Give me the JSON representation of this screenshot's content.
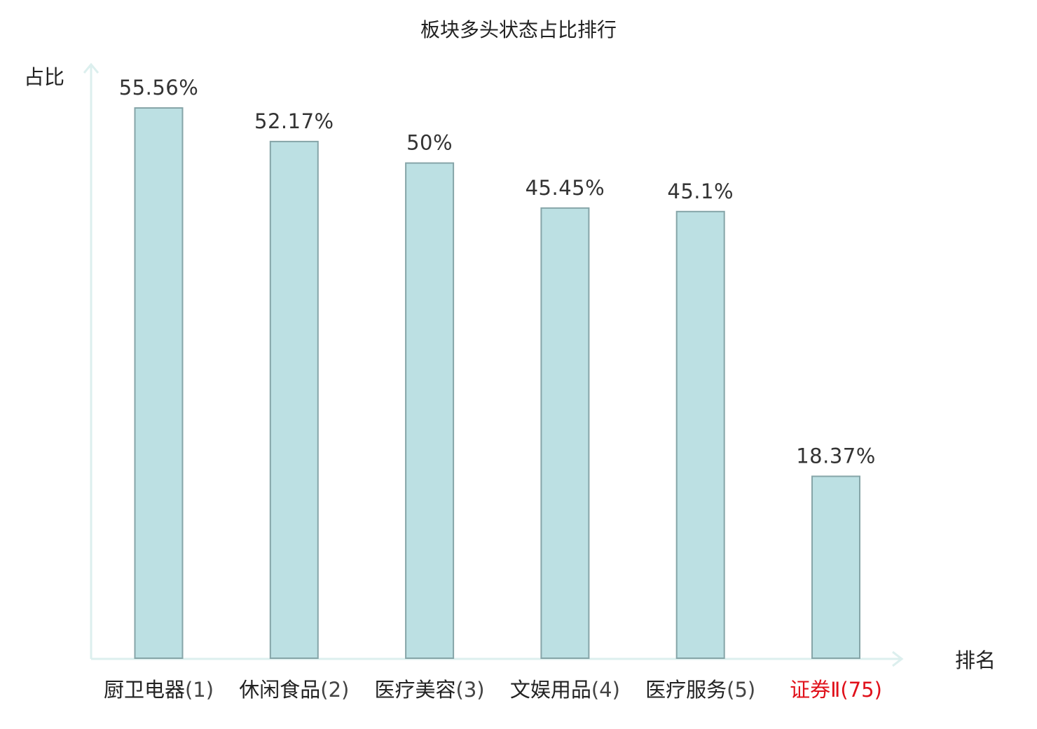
{
  "chart_data": {
    "type": "bar",
    "title": "板块多头状态占比排行",
    "ylabel": "占比",
    "xlabel": "排名",
    "ylim": [
      0,
      60
    ],
    "grid": false,
    "categories": [
      "厨卫电器",
      "休闲食品",
      "医疗美容",
      "文娱用品",
      "医疗服务",
      "证券Ⅱ"
    ],
    "ranks": [
      "(1)",
      "(2)",
      "(3)",
      "(4)",
      "(5)",
      "(75)"
    ],
    "values": [
      55.56,
      52.17,
      50,
      45.45,
      45.1,
      18.37
    ],
    "value_labels": [
      "55.56%",
      "52.17%",
      "50%",
      "45.45%",
      "45.1%",
      "18.37%"
    ],
    "highlight_index": 5,
    "colors": {
      "bar_fill": "#bce0e3",
      "bar_stroke": "#86a5a8",
      "axis": "#dcefee",
      "highlight_text": "#e0101a",
      "text": "#222222"
    }
  }
}
